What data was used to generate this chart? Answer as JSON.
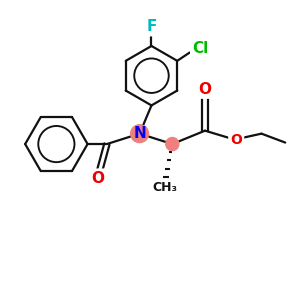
{
  "background_color": "#ffffff",
  "atom_colors": {
    "N": "#0000ee",
    "O": "#ee0000",
    "F": "#00bbbb",
    "Cl": "#00bb00",
    "C": "#111111"
  },
  "highlight_color": "#f08080",
  "bond_color": "#111111",
  "bond_lw": 1.6,
  "font_size_atom": 10,
  "figsize": [
    3.0,
    3.0
  ],
  "dpi": 100
}
